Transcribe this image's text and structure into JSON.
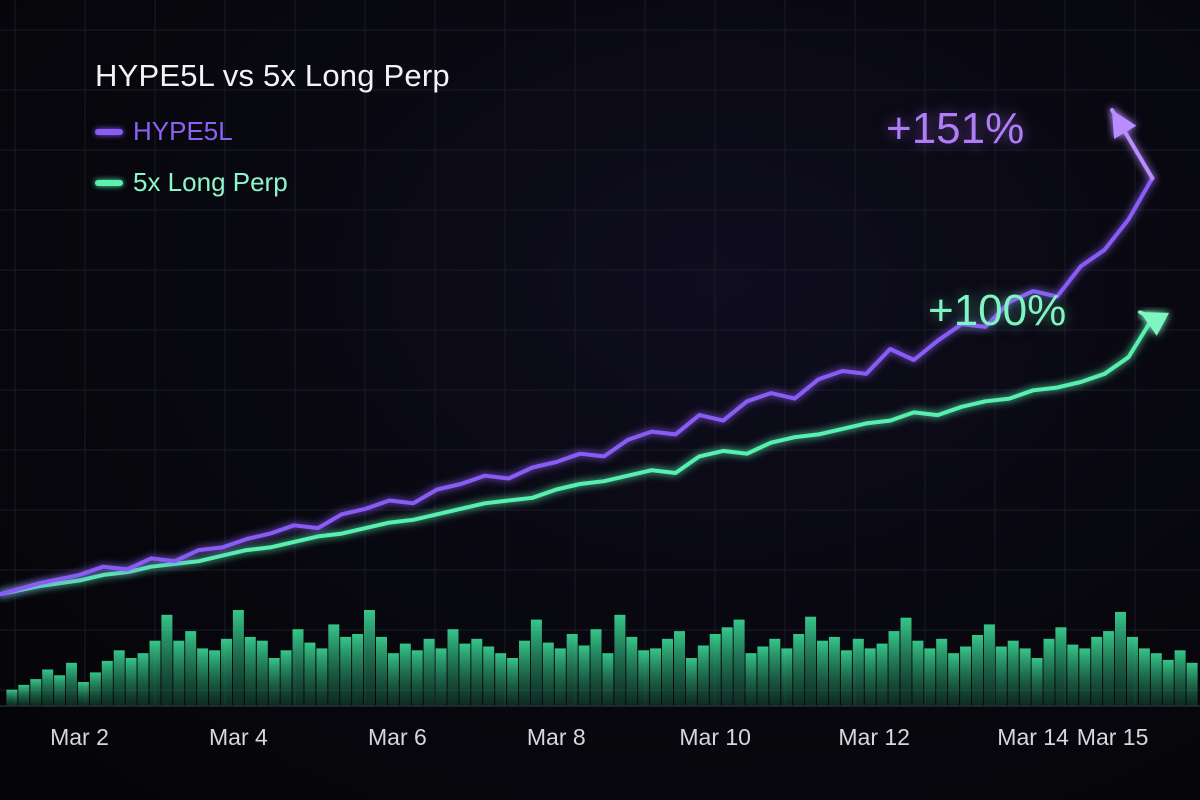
{
  "chart_data": {
    "type": "line",
    "title": "HYPE5L vs 5x Long Perp",
    "x_tick_labels": [
      "Mar 2",
      "Mar 4",
      "Mar 6",
      "Mar 8",
      "Mar 10",
      "Mar 12",
      "Mar 14",
      "Mar 15"
    ],
    "x_tick_days": [
      2,
      4,
      6,
      8,
      10,
      12,
      14,
      15
    ],
    "xlim_days": [
      1,
      16.1
    ],
    "ylim_percent": [
      -5,
      175
    ],
    "grid": true,
    "legend_position": "top-left",
    "series": [
      {
        "name": "HYPE5L",
        "color": "#8a5cf6",
        "end_label": "+151%",
        "x_days": [
          1.0,
          1.5,
          2.0,
          2.3,
          2.6,
          2.9,
          3.2,
          3.5,
          3.8,
          4.1,
          4.4,
          4.7,
          5.0,
          5.3,
          5.6,
          5.9,
          6.2,
          6.5,
          6.8,
          7.1,
          7.4,
          7.7,
          8.0,
          8.3,
          8.6,
          8.9,
          9.2,
          9.5,
          9.8,
          10.1,
          10.4,
          10.7,
          11.0,
          11.3,
          11.6,
          11.9,
          12.2,
          12.5,
          12.8,
          13.1,
          13.4,
          13.7,
          14.0,
          14.3,
          14.6,
          14.9,
          15.2,
          15.5
        ],
        "y_percent": [
          0,
          4,
          7,
          10,
          9,
          13,
          12,
          16,
          17,
          20,
          22,
          25,
          24,
          29,
          31,
          34,
          33,
          38,
          40,
          43,
          42,
          46,
          48,
          51,
          50,
          56,
          59,
          58,
          65,
          63,
          70,
          73,
          71,
          78,
          81,
          80,
          89,
          85,
          92,
          98,
          97,
          106,
          110,
          108,
          119,
          125,
          136,
          151
        ]
      },
      {
        "name": "5x Long Perp",
        "color": "#59f0b0",
        "end_label": "+100%",
        "x_days": [
          1.0,
          1.5,
          2.0,
          2.3,
          2.6,
          2.9,
          3.2,
          3.5,
          3.8,
          4.1,
          4.4,
          4.7,
          5.0,
          5.3,
          5.6,
          5.9,
          6.2,
          6.5,
          6.8,
          7.1,
          7.4,
          7.7,
          8.0,
          8.3,
          8.6,
          8.9,
          9.2,
          9.5,
          9.8,
          10.1,
          10.4,
          10.7,
          11.0,
          11.3,
          11.6,
          11.9,
          12.2,
          12.5,
          12.8,
          13.1,
          13.4,
          13.7,
          14.0,
          14.3,
          14.6,
          14.9,
          15.2,
          15.5
        ],
        "y_percent": [
          0,
          3,
          5,
          7,
          8,
          10,
          11,
          12,
          14,
          16,
          17,
          19,
          21,
          22,
          24,
          26,
          27,
          29,
          31,
          33,
          34,
          35,
          38,
          40,
          41,
          43,
          45,
          44,
          50,
          52,
          51,
          55,
          57,
          58,
          60,
          62,
          63,
          66,
          65,
          68,
          70,
          71,
          74,
          75,
          77,
          80,
          86,
          100
        ]
      }
    ],
    "volume_bars": {
      "color": "#3ee89f",
      "x_days": [
        1.15,
        1.3,
        1.45,
        1.6,
        1.75,
        1.9,
        2.05,
        2.2,
        2.35,
        2.5,
        2.65,
        2.8,
        2.95,
        3.1,
        3.25,
        3.4,
        3.55,
        3.7,
        3.85,
        4.0,
        4.15,
        4.3,
        4.45,
        4.6,
        4.75,
        4.9,
        5.05,
        5.2,
        5.35,
        5.5,
        5.65,
        5.8,
        5.95,
        6.1,
        6.25,
        6.4,
        6.55,
        6.7,
        6.85,
        7.0,
        7.15,
        7.3,
        7.45,
        7.6,
        7.75,
        7.9,
        8.05,
        8.2,
        8.35,
        8.5,
        8.65,
        8.8,
        8.95,
        9.1,
        9.25,
        9.4,
        9.55,
        9.7,
        9.85,
        10.0,
        10.15,
        10.3,
        10.45,
        10.6,
        10.75,
        10.9,
        11.05,
        11.2,
        11.35,
        11.5,
        11.65,
        11.8,
        11.95,
        12.1,
        12.25,
        12.4,
        12.55,
        12.7,
        12.85,
        13.0,
        13.15,
        13.3,
        13.45,
        13.6,
        13.75,
        13.9,
        14.05,
        14.2,
        14.35,
        14.5,
        14.65,
        14.8,
        14.95,
        15.1,
        15.25,
        15.4,
        15.55,
        15.7,
        15.85,
        16.0
      ],
      "relative_heights": [
        0.17,
        0.22,
        0.28,
        0.38,
        0.32,
        0.45,
        0.25,
        0.35,
        0.47,
        0.58,
        0.5,
        0.55,
        0.68,
        0.95,
        0.68,
        0.78,
        0.6,
        0.58,
        0.7,
        1.0,
        0.72,
        0.68,
        0.5,
        0.58,
        0.8,
        0.66,
        0.6,
        0.85,
        0.72,
        0.75,
        1.0,
        0.72,
        0.55,
        0.65,
        0.58,
        0.7,
        0.6,
        0.8,
        0.65,
        0.7,
        0.62,
        0.55,
        0.5,
        0.68,
        0.9,
        0.66,
        0.6,
        0.75,
        0.63,
        0.8,
        0.55,
        0.95,
        0.72,
        0.58,
        0.6,
        0.7,
        0.78,
        0.5,
        0.63,
        0.75,
        0.82,
        0.9,
        0.55,
        0.62,
        0.7,
        0.6,
        0.75,
        0.93,
        0.68,
        0.72,
        0.58,
        0.7,
        0.6,
        0.65,
        0.78,
        0.92,
        0.68,
        0.6,
        0.7,
        0.55,
        0.62,
        0.74,
        0.85,
        0.62,
        0.68,
        0.6,
        0.5,
        0.7,
        0.82,
        0.64,
        0.6,
        0.72,
        0.78,
        0.98,
        0.72,
        0.6,
        0.55,
        0.48,
        0.58,
        0.45
      ]
    }
  }
}
